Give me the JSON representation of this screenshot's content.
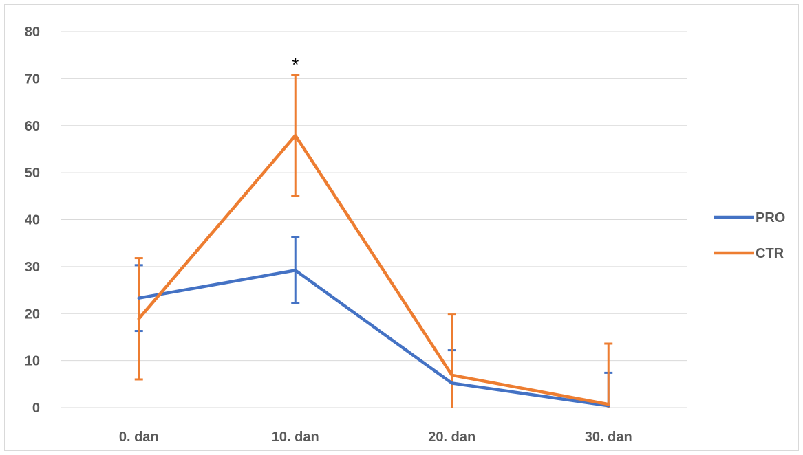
{
  "chart_data": {
    "type": "line",
    "categories": [
      "0. dan",
      "10. dan",
      "20. dan",
      "30. dan"
    ],
    "ylim": [
      0,
      80
    ],
    "yticks": [
      0,
      10,
      20,
      30,
      40,
      50,
      60,
      70,
      80
    ],
    "grid": true,
    "legend_position": "right",
    "series": [
      {
        "name": "PRO",
        "color": "#4472C4",
        "values": [
          23.3,
          29.2,
          5.2,
          0.4
        ],
        "error": [
          7.0,
          7.0,
          7.0,
          7.0
        ]
      },
      {
        "name": "CTR",
        "color": "#ED7D31",
        "values": [
          18.9,
          57.9,
          6.9,
          0.7
        ],
        "error": [
          12.9,
          12.9,
          12.9,
          12.9
        ]
      }
    ],
    "annotations": [
      {
        "text": "*",
        "category": "10. dan"
      }
    ]
  }
}
